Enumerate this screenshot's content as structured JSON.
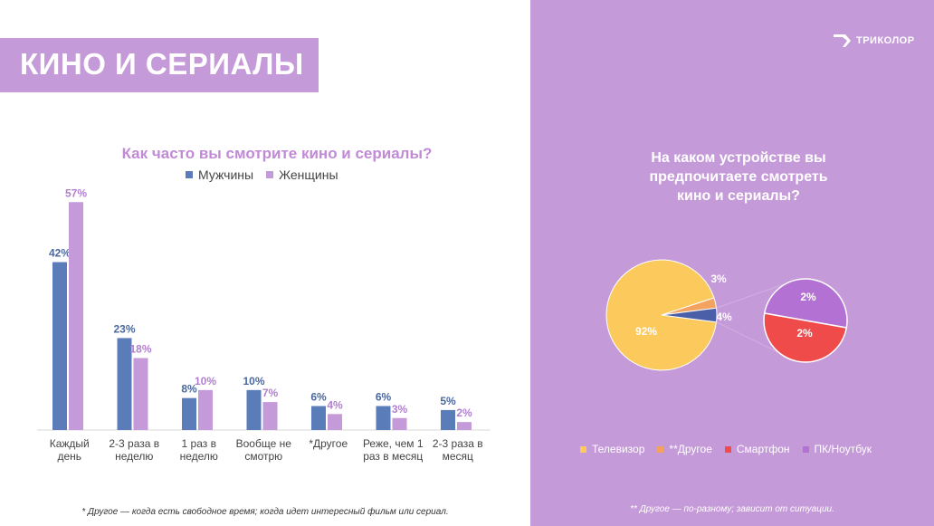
{
  "header": {
    "title": "КИНО И СЕРИАЛЫ",
    "logo_text": "ТРИКОЛОР"
  },
  "colors": {
    "accent": "#c59ad9",
    "men": "#5a7cb8",
    "women": "#c59ad9"
  },
  "chart_data": [
    {
      "type": "bar",
      "title": "Как часто вы смотрите кино и сериалы?",
      "categories": [
        [
          "Каждый",
          "день"
        ],
        [
          "2-3 раза в",
          "неделю"
        ],
        [
          "1 раз в",
          "неделю"
        ],
        [
          "Вообще не",
          "смотрю"
        ],
        [
          "*Другое"
        ],
        [
          "Реже, чем 1",
          "раз в месяц"
        ],
        [
          "2-3 раза в",
          "месяц"
        ]
      ],
      "series": [
        {
          "name": "Мужчины",
          "values": [
            42,
            23,
            8,
            10,
            6,
            6,
            5
          ],
          "labels": [
            "42%",
            "23%",
            "8%",
            "10%",
            "6%",
            "6%",
            "5%"
          ],
          "color": "#5a7cb8",
          "label_color": "#4a689e"
        },
        {
          "name": "Женщины",
          "values": [
            57,
            18,
            10,
            7,
            4,
            3,
            2
          ],
          "labels": [
            "57%",
            "18%",
            "10%",
            "7%",
            "4%",
            "3%",
            "2%"
          ],
          "color": "#c59ad9",
          "label_color": "#b27fd0"
        }
      ],
      "ylim": [
        0,
        60
      ],
      "legend": "top",
      "grid": false
    },
    {
      "type": "pie",
      "title": [
        "На каком устройстве вы",
        "предпочитаете смотреть",
        "кино и сериалы?"
      ],
      "slices": [
        {
          "name": "Телевизор",
          "value": 92,
          "label": "92%",
          "color": "#fbc95c"
        },
        {
          "name": "**Другое",
          "value": 3,
          "label": "3%",
          "color": "#f3a35f"
        },
        {
          "name": "Смартфон",
          "value": 2,
          "label": "2%",
          "color": "#ef4b4b"
        },
        {
          "name": "ПК/Ноутбук",
          "value": 2,
          "label": "2%",
          "color": "#b371d3"
        }
      ],
      "combined_label": "4%",
      "legend": "bottom"
    }
  ],
  "footnotes": {
    "left": "* Другое — когда есть свободное время; когда идет интересный фильм или сериал.",
    "right": "** Другое — по-разному; зависит от ситуации."
  }
}
